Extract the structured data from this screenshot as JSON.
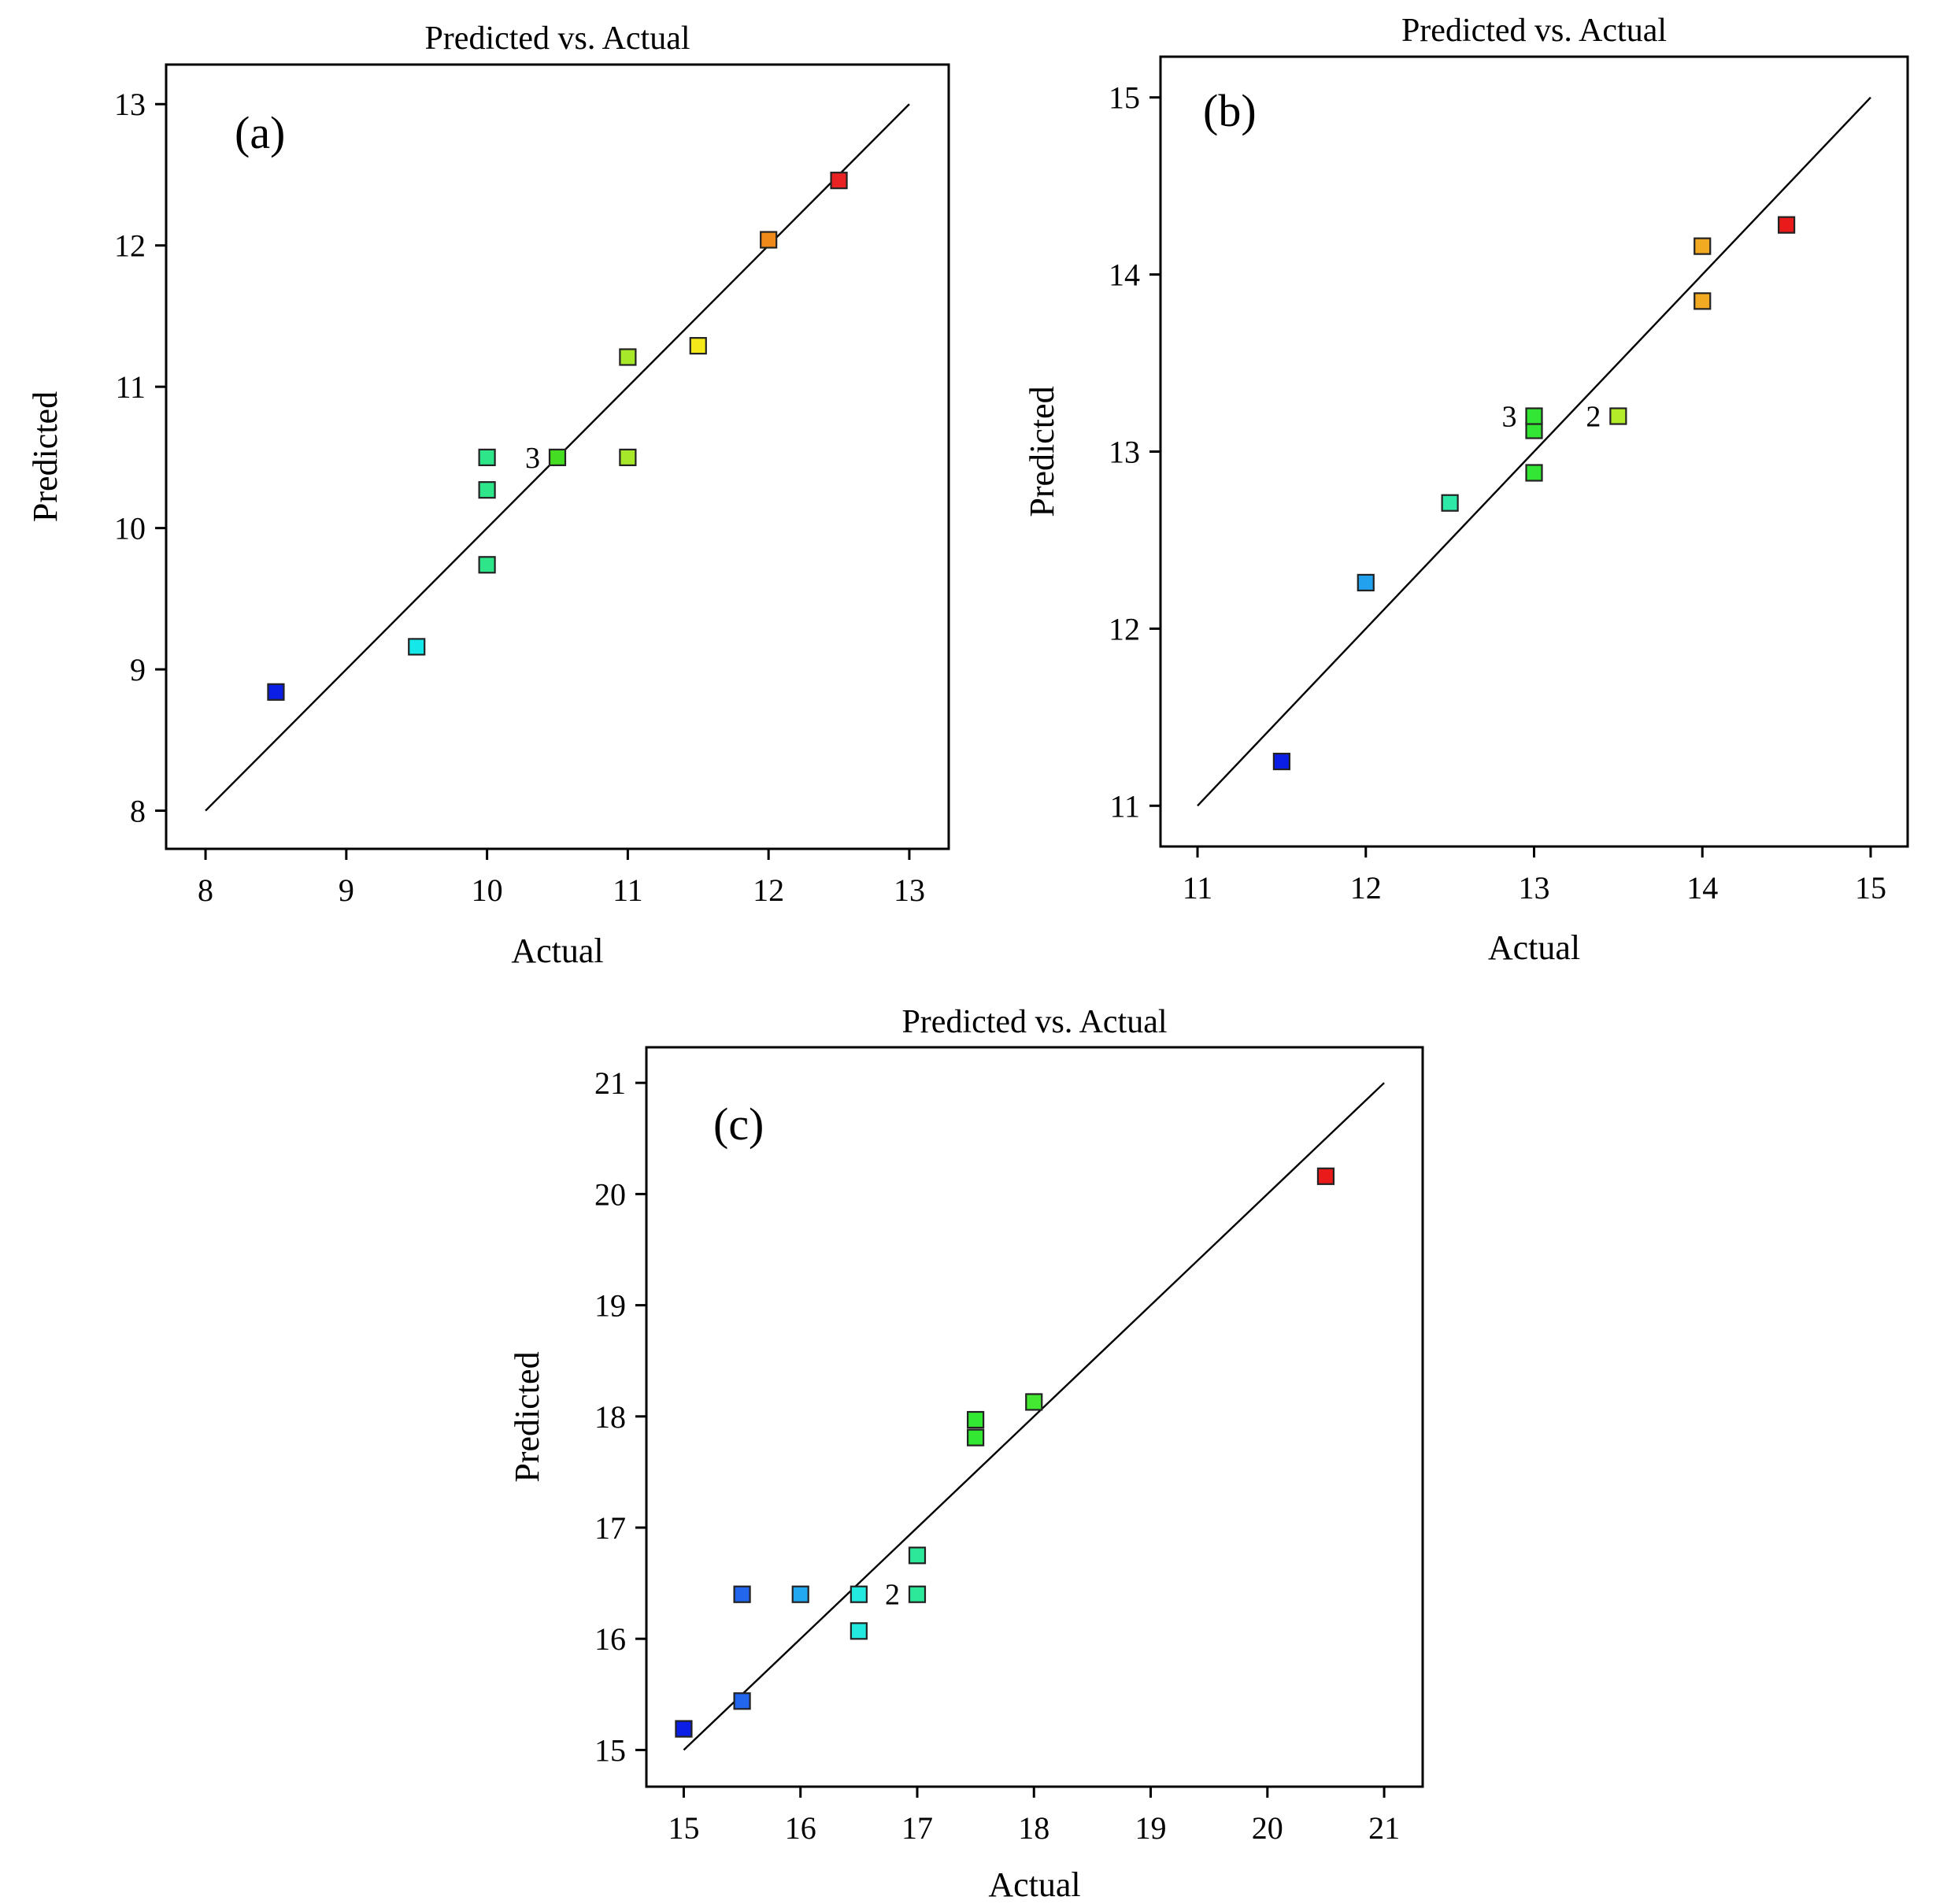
{
  "chart_data": [
    {
      "id": "a",
      "type": "scatter",
      "panel_label": "(a)",
      "title": "Predicted vs. Actual",
      "xlabel": "Actual",
      "ylabel": "Predicted",
      "xlim": [
        7.72,
        13.28
      ],
      "ylim": [
        7.73,
        13.28
      ],
      "xticks": [
        8,
        9,
        10,
        11,
        12,
        13
      ],
      "yticks": [
        8,
        9,
        10,
        11,
        12,
        13
      ],
      "line": [
        [
          8,
          8
        ],
        [
          13,
          13
        ]
      ],
      "points": [
        {
          "x": 8.5,
          "y": 8.84,
          "color": "#0a1ee6"
        },
        {
          "x": 9.5,
          "y": 9.16,
          "color": "#15e8e8"
        },
        {
          "x": 10.0,
          "y": 9.74,
          "color": "#2ee58a"
        },
        {
          "x": 10.0,
          "y": 10.27,
          "color": "#2ee58a"
        },
        {
          "x": 10.0,
          "y": 10.5,
          "color": "#2ee58a"
        },
        {
          "x": 10.5,
          "y": 10.5,
          "color": "#44dd22"
        },
        {
          "x": 11.0,
          "y": 10.5,
          "color": "#a8e82a"
        },
        {
          "x": 11.0,
          "y": 11.21,
          "color": "#a8e82a"
        },
        {
          "x": 11.5,
          "y": 11.29,
          "color": "#f2e81a"
        },
        {
          "x": 12.0,
          "y": 12.04,
          "color": "#ee8a1a"
        },
        {
          "x": 12.5,
          "y": 12.46,
          "color": "#e82222"
        }
      ],
      "annotations": [
        {
          "text": "3",
          "x": 10.5,
          "y": 10.5
        }
      ]
    },
    {
      "id": "b",
      "type": "scatter",
      "panel_label": "(b)",
      "title": "Predicted vs. Actual",
      "xlabel": "Actual",
      "ylabel": "Predicted",
      "xlim": [
        10.78,
        15.22
      ],
      "ylim": [
        10.77,
        15.23
      ],
      "xticks": [
        11,
        12,
        13,
        14,
        15
      ],
      "yticks": [
        11,
        12,
        13,
        14,
        15
      ],
      "line": [
        [
          11,
          11
        ],
        [
          15,
          15
        ]
      ],
      "points": [
        {
          "x": 11.5,
          "y": 11.25,
          "color": "#0a1ee6"
        },
        {
          "x": 12.0,
          "y": 12.26,
          "color": "#22a2ee"
        },
        {
          "x": 12.5,
          "y": 12.71,
          "color": "#2ee8a8"
        },
        {
          "x": 13.0,
          "y": 12.88,
          "color": "#33e633"
        },
        {
          "x": 13.0,
          "y": 13.12,
          "color": "#33e633"
        },
        {
          "x": 13.0,
          "y": 13.2,
          "color": "#33e633"
        },
        {
          "x": 13.5,
          "y": 13.2,
          "color": "#b4ec2a"
        },
        {
          "x": 14.0,
          "y": 13.85,
          "color": "#f2aa22"
        },
        {
          "x": 14.0,
          "y": 14.16,
          "color": "#f2aa22"
        },
        {
          "x": 14.5,
          "y": 14.28,
          "color": "#e81a1a"
        }
      ],
      "annotations": [
        {
          "text": "3",
          "x": 13.0,
          "y": 13.2
        },
        {
          "text": "2",
          "x": 13.5,
          "y": 13.2
        }
      ]
    },
    {
      "id": "c",
      "type": "scatter",
      "panel_label": "(c)",
      "title": "Predicted vs. Actual",
      "xlabel": "Actual",
      "ylabel": "Predicted",
      "xlim": [
        14.68,
        21.33
      ],
      "ylim": [
        14.67,
        21.32
      ],
      "xticks": [
        15,
        16,
        17,
        18,
        19,
        20,
        21
      ],
      "yticks": [
        15,
        16,
        17,
        18,
        19,
        20,
        21
      ],
      "line": [
        [
          15,
          15
        ],
        [
          21,
          21
        ]
      ],
      "points": [
        {
          "x": 15.0,
          "y": 15.19,
          "color": "#0a1ee6"
        },
        {
          "x": 15.5,
          "y": 15.44,
          "color": "#2266ee"
        },
        {
          "x": 15.5,
          "y": 16.4,
          "color": "#2266ee"
        },
        {
          "x": 16.0,
          "y": 16.4,
          "color": "#22a8ee"
        },
        {
          "x": 16.5,
          "y": 16.07,
          "color": "#22e8e0"
        },
        {
          "x": 16.5,
          "y": 16.4,
          "color": "#22e8e0"
        },
        {
          "x": 17.0,
          "y": 16.4,
          "color": "#2ee89a"
        },
        {
          "x": 17.0,
          "y": 16.75,
          "color": "#2ee89a"
        },
        {
          "x": 17.5,
          "y": 17.81,
          "color": "#33e833"
        },
        {
          "x": 17.5,
          "y": 17.97,
          "color": "#33e833"
        },
        {
          "x": 18.0,
          "y": 18.13,
          "color": "#44e833"
        },
        {
          "x": 20.5,
          "y": 20.16,
          "color": "#e81a1a"
        }
      ],
      "annotations": [
        {
          "text": "2",
          "x": 17.0,
          "y": 16.4
        }
      ]
    }
  ]
}
